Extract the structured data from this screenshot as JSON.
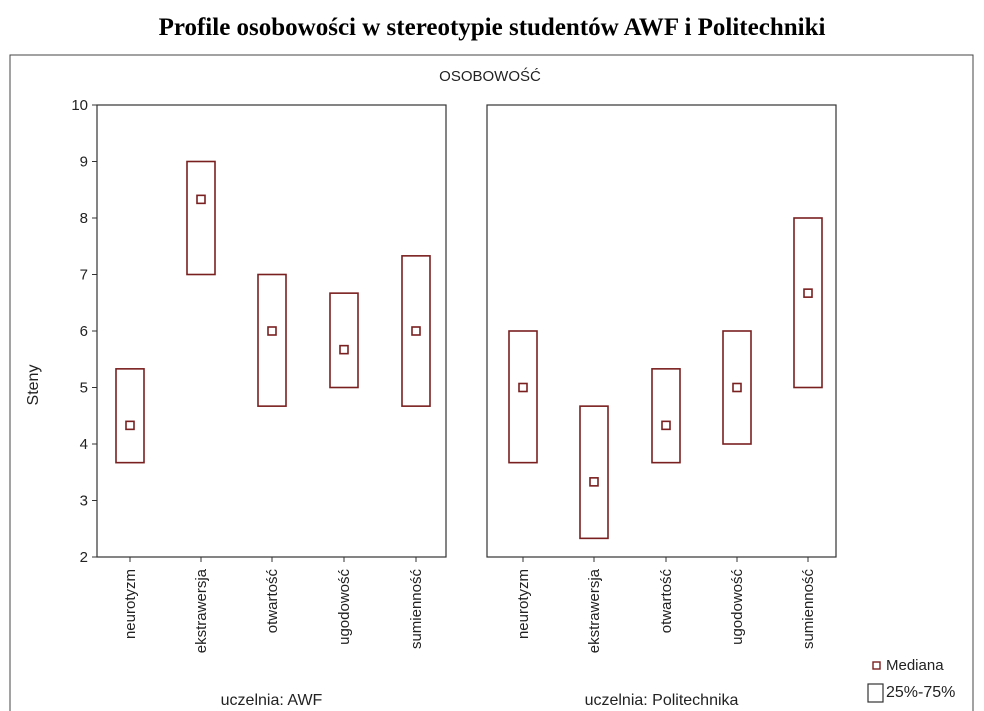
{
  "title": "Profile osobowości w stereotypie studentów AWF i Politechniki",
  "chart_data": {
    "type": "box",
    "title": "Profile osobowości w stereotypie studentów AWF i Politechniki",
    "subtitle": "OSOBOWOŚĆ",
    "ylabel": "Steny",
    "ylim": [
      2,
      10
    ],
    "yticks": [
      2,
      3,
      4,
      5,
      6,
      7,
      8,
      9,
      10
    ],
    "categories": [
      "neurotyzm",
      "ekstrawersja",
      "otwartość",
      "ugodowość",
      "sumienność"
    ],
    "panels": [
      {
        "label": "uczelnia: AWF",
        "boxes": [
          {
            "category": "neurotyzm",
            "median": 4.33,
            "q1": 3.67,
            "q3": 5.33
          },
          {
            "category": "ekstrawersja",
            "median": 8.33,
            "q1": 7.0,
            "q3": 9.0
          },
          {
            "category": "otwartość",
            "median": 6.0,
            "q1": 4.67,
            "q3": 7.0
          },
          {
            "category": "ugodowość",
            "median": 5.67,
            "q1": 5.0,
            "q3": 6.67
          },
          {
            "category": "sumienność",
            "median": 6.0,
            "q1": 4.67,
            "q3": 7.33
          }
        ]
      },
      {
        "label": "uczelnia: Politechnika",
        "boxes": [
          {
            "category": "neurotyzm",
            "median": 5.0,
            "q1": 3.67,
            "q3": 6.0
          },
          {
            "category": "ekstrawersja",
            "median": 3.33,
            "q1": 2.33,
            "q3": 4.67
          },
          {
            "category": "otwartość",
            "median": 4.33,
            "q1": 3.67,
            "q3": 5.33
          },
          {
            "category": "ugodowość",
            "median": 5.0,
            "q1": 4.0,
            "q3": 6.0
          },
          {
            "category": "sumienność",
            "median": 6.67,
            "q1": 5.0,
            "q3": 8.0
          }
        ]
      }
    ],
    "legend": {
      "position": "bottom-right",
      "items": [
        {
          "label": "Mediana",
          "marker": "small-square"
        },
        {
          "label": "25%-75%",
          "marker": "box"
        }
      ]
    },
    "colors": {
      "box": "#7a1f1f",
      "frame": "#333333"
    }
  }
}
